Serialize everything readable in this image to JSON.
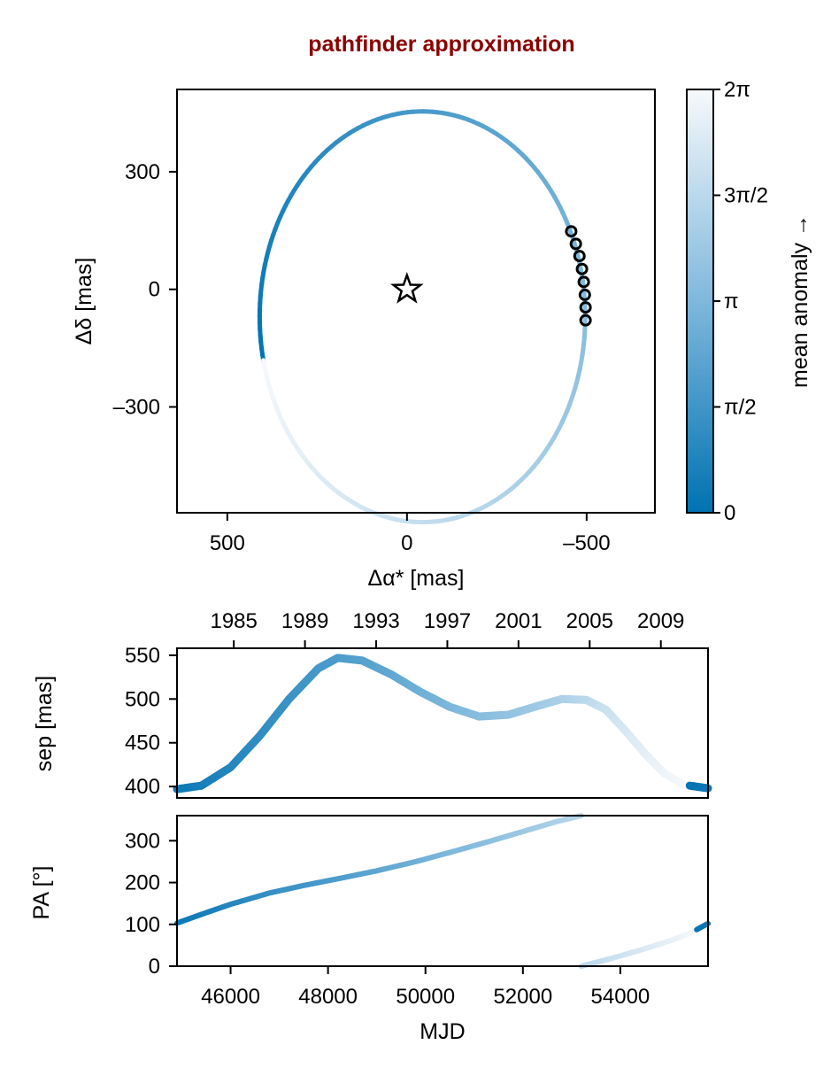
{
  "title": "pathfinder approximation",
  "colors": {
    "title": "#8b0000",
    "colormap_low": "#0072b2",
    "colormap_mid": "#7fb8dc",
    "colormap_high": "#f7f9fb",
    "star_stroke": "#000000",
    "marker_stroke": "#000000"
  },
  "chart_data": [
    {
      "type": "scatter",
      "panel": "orbit",
      "xlabel": "Δα* [mas]",
      "ylabel": "Δδ [mas]",
      "xlim": [
        640,
        -690
      ],
      "ylim": [
        -570,
        510
      ],
      "x_inverted": true,
      "x_ticks": [
        500,
        0,
        -500
      ],
      "x_tick_labels": [
        "500",
        "0",
        "–500"
      ],
      "y_ticks": [
        300,
        0,
        -300
      ],
      "y_tick_labels": [
        "300",
        "0",
        "–300"
      ],
      "orbit_ellipse": {
        "center": [
          -43,
          -70
        ],
        "semi_axis_x": 453,
        "semi_axis_y": 524,
        "note_colored_by": "mean anomaly"
      },
      "star": {
        "x": 0,
        "y": 0,
        "marker": "star"
      },
      "observations": [
        {
          "x": -457,
          "y": 148
        },
        {
          "x": -470,
          "y": 116
        },
        {
          "x": -480,
          "y": 85
        },
        {
          "x": -487,
          "y": 52
        },
        {
          "x": -492,
          "y": 19
        },
        {
          "x": -495,
          "y": -14
        },
        {
          "x": -497,
          "y": -46
        },
        {
          "x": -497,
          "y": -79
        }
      ]
    },
    {
      "type": "colorbar",
      "label": "mean anomaly →",
      "range": [
        0,
        6.2832
      ],
      "tick_values": [
        0,
        1.5708,
        3.1416,
        4.7124,
        6.2832
      ],
      "tick_labels": [
        "0",
        "π/2",
        "π",
        "3π/2",
        "2π"
      ]
    },
    {
      "type": "line",
      "panel": "separation",
      "ylabel": "sep [mas]",
      "xlim": [
        44900,
        55800
      ],
      "ylim": [
        387,
        558
      ],
      "y_ticks": [
        400,
        450,
        500,
        550
      ],
      "y_tick_labels": [
        "400",
        "450",
        "500",
        "550"
      ],
      "top_axis_years": [
        1985,
        1989,
        1993,
        1997,
        2001,
        2005,
        2009
      ],
      "top_axis_year_mjd": [
        46066,
        47527,
        48988,
        50449,
        51910,
        53371,
        54832
      ],
      "x": [
        44900,
        45400,
        46000,
        46600,
        47200,
        47800,
        48200,
        48700,
        49300,
        49900,
        50500,
        51100,
        51700,
        52300,
        52800,
        53300,
        53700,
        54100,
        54500,
        54900,
        55300,
        55800
      ],
      "y": [
        397,
        401,
        422,
        458,
        500,
        535,
        547,
        544,
        528,
        508,
        491,
        480,
        482,
        492,
        500,
        499,
        488,
        464,
        438,
        415,
        402,
        398
      ],
      "mean_anomaly": [
        0.3,
        0.55,
        0.9,
        1.2,
        1.45,
        1.7,
        1.9,
        2.1,
        2.4,
        2.75,
        3.05,
        3.35,
        3.65,
        3.95,
        4.3,
        4.7,
        5.1,
        5.45,
        5.8,
        6.05,
        6.2,
        0.3
      ]
    },
    {
      "type": "line",
      "panel": "position_angle",
      "xlabel": "MJD",
      "ylabel": "PA [°]",
      "xlim": [
        44900,
        55800
      ],
      "ylim": [
        0,
        360
      ],
      "x_ticks": [
        46000,
        48000,
        50000,
        52000,
        54000
      ],
      "x_tick_labels": [
        "46000",
        "48000",
        "50000",
        "52000",
        "54000"
      ],
      "y_ticks": [
        0,
        100,
        200,
        300
      ],
      "y_tick_labels": [
        "0",
        "100",
        "200",
        "300"
      ],
      "x": [
        44900,
        45500,
        46000,
        46800,
        47500,
        48200,
        49000,
        49800,
        50500,
        51300,
        52000,
        52700,
        53200,
        53200,
        53800,
        54400,
        55000,
        55400,
        55800
      ],
      "y": [
        103,
        128,
        148,
        175,
        193,
        209,
        228,
        250,
        272,
        298,
        322,
        346,
        360,
        0,
        18,
        38,
        60,
        77,
        102
      ],
      "mean_anomaly": [
        0.3,
        0.6,
        0.9,
        1.3,
        1.6,
        1.9,
        2.3,
        2.75,
        3.1,
        3.5,
        3.9,
        4.3,
        4.65,
        4.65,
        5.05,
        5.45,
        5.85,
        6.1,
        0.3
      ]
    }
  ]
}
